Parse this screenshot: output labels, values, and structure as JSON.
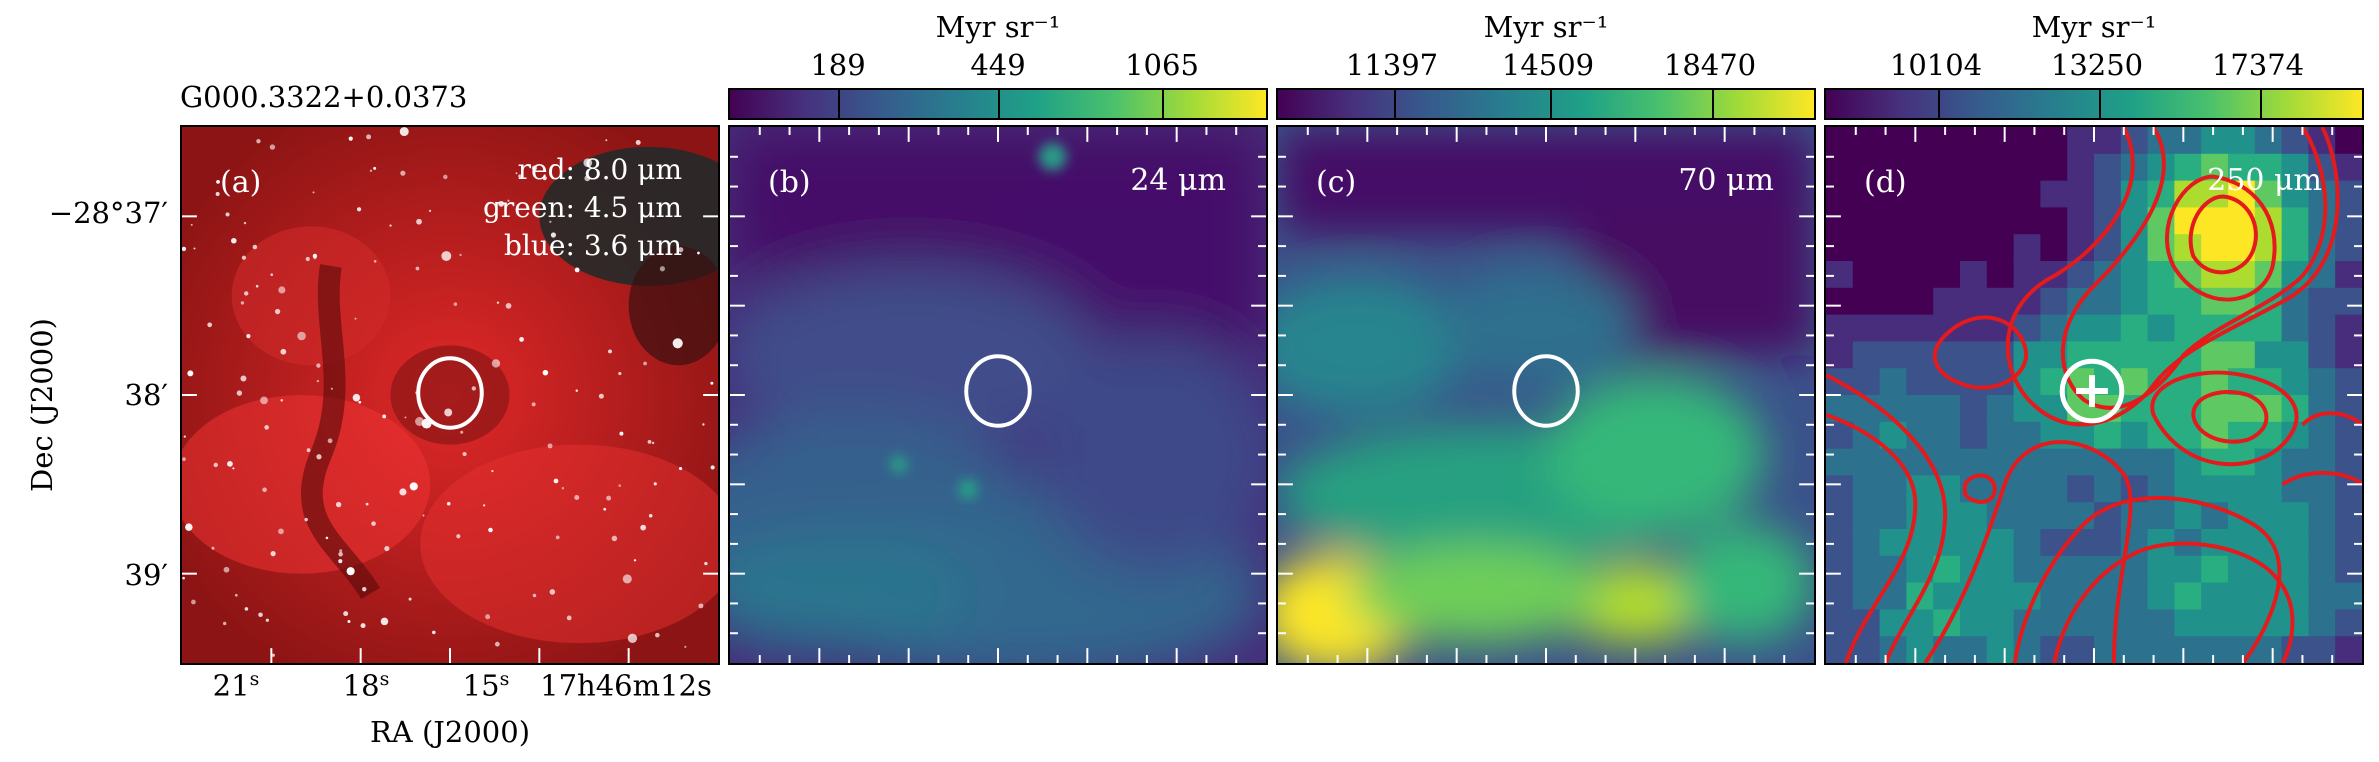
{
  "figure": {
    "source_name": "G000.3322+0.0373",
    "x_axis_label": "RA (J2000)",
    "y_axis_label": "Dec (J2000)",
    "y_ticks": [
      "−28°37′",
      "38′",
      "39′"
    ],
    "x_ticks": [
      {
        "label": "21",
        "unit": "s"
      },
      {
        "label": "18",
        "unit": "s"
      },
      {
        "label": "15",
        "unit": "s"
      },
      {
        "label": "17h46m12s",
        "unit": ""
      }
    ]
  },
  "panels": [
    {
      "id": "a",
      "label": "(a)",
      "legend": [
        "red: 8.0 μm",
        "green: 4.5 μm",
        "blue: 3.6 μm"
      ]
    },
    {
      "id": "b",
      "label": "(b)",
      "wavelength": "24 μm",
      "colorbar": {
        "unit": "Myr sr⁻¹",
        "ticks": [
          "189",
          "449",
          "1065"
        ]
      }
    },
    {
      "id": "c",
      "label": "(c)",
      "wavelength": "70 μm",
      "colorbar": {
        "unit": "Myr sr⁻¹",
        "ticks": [
          "11397",
          "14509",
          "18470"
        ]
      }
    },
    {
      "id": "d",
      "label": "(d)",
      "wavelength": "250 μm",
      "colorbar": {
        "unit": "Myr sr⁻¹",
        "ticks": [
          "10104",
          "13250",
          "17374"
        ]
      }
    }
  ],
  "colors": {
    "viridis_low": "#440154",
    "viridis_high": "#fde725",
    "contour": "#e41a1c",
    "marker": "#ffffff"
  }
}
